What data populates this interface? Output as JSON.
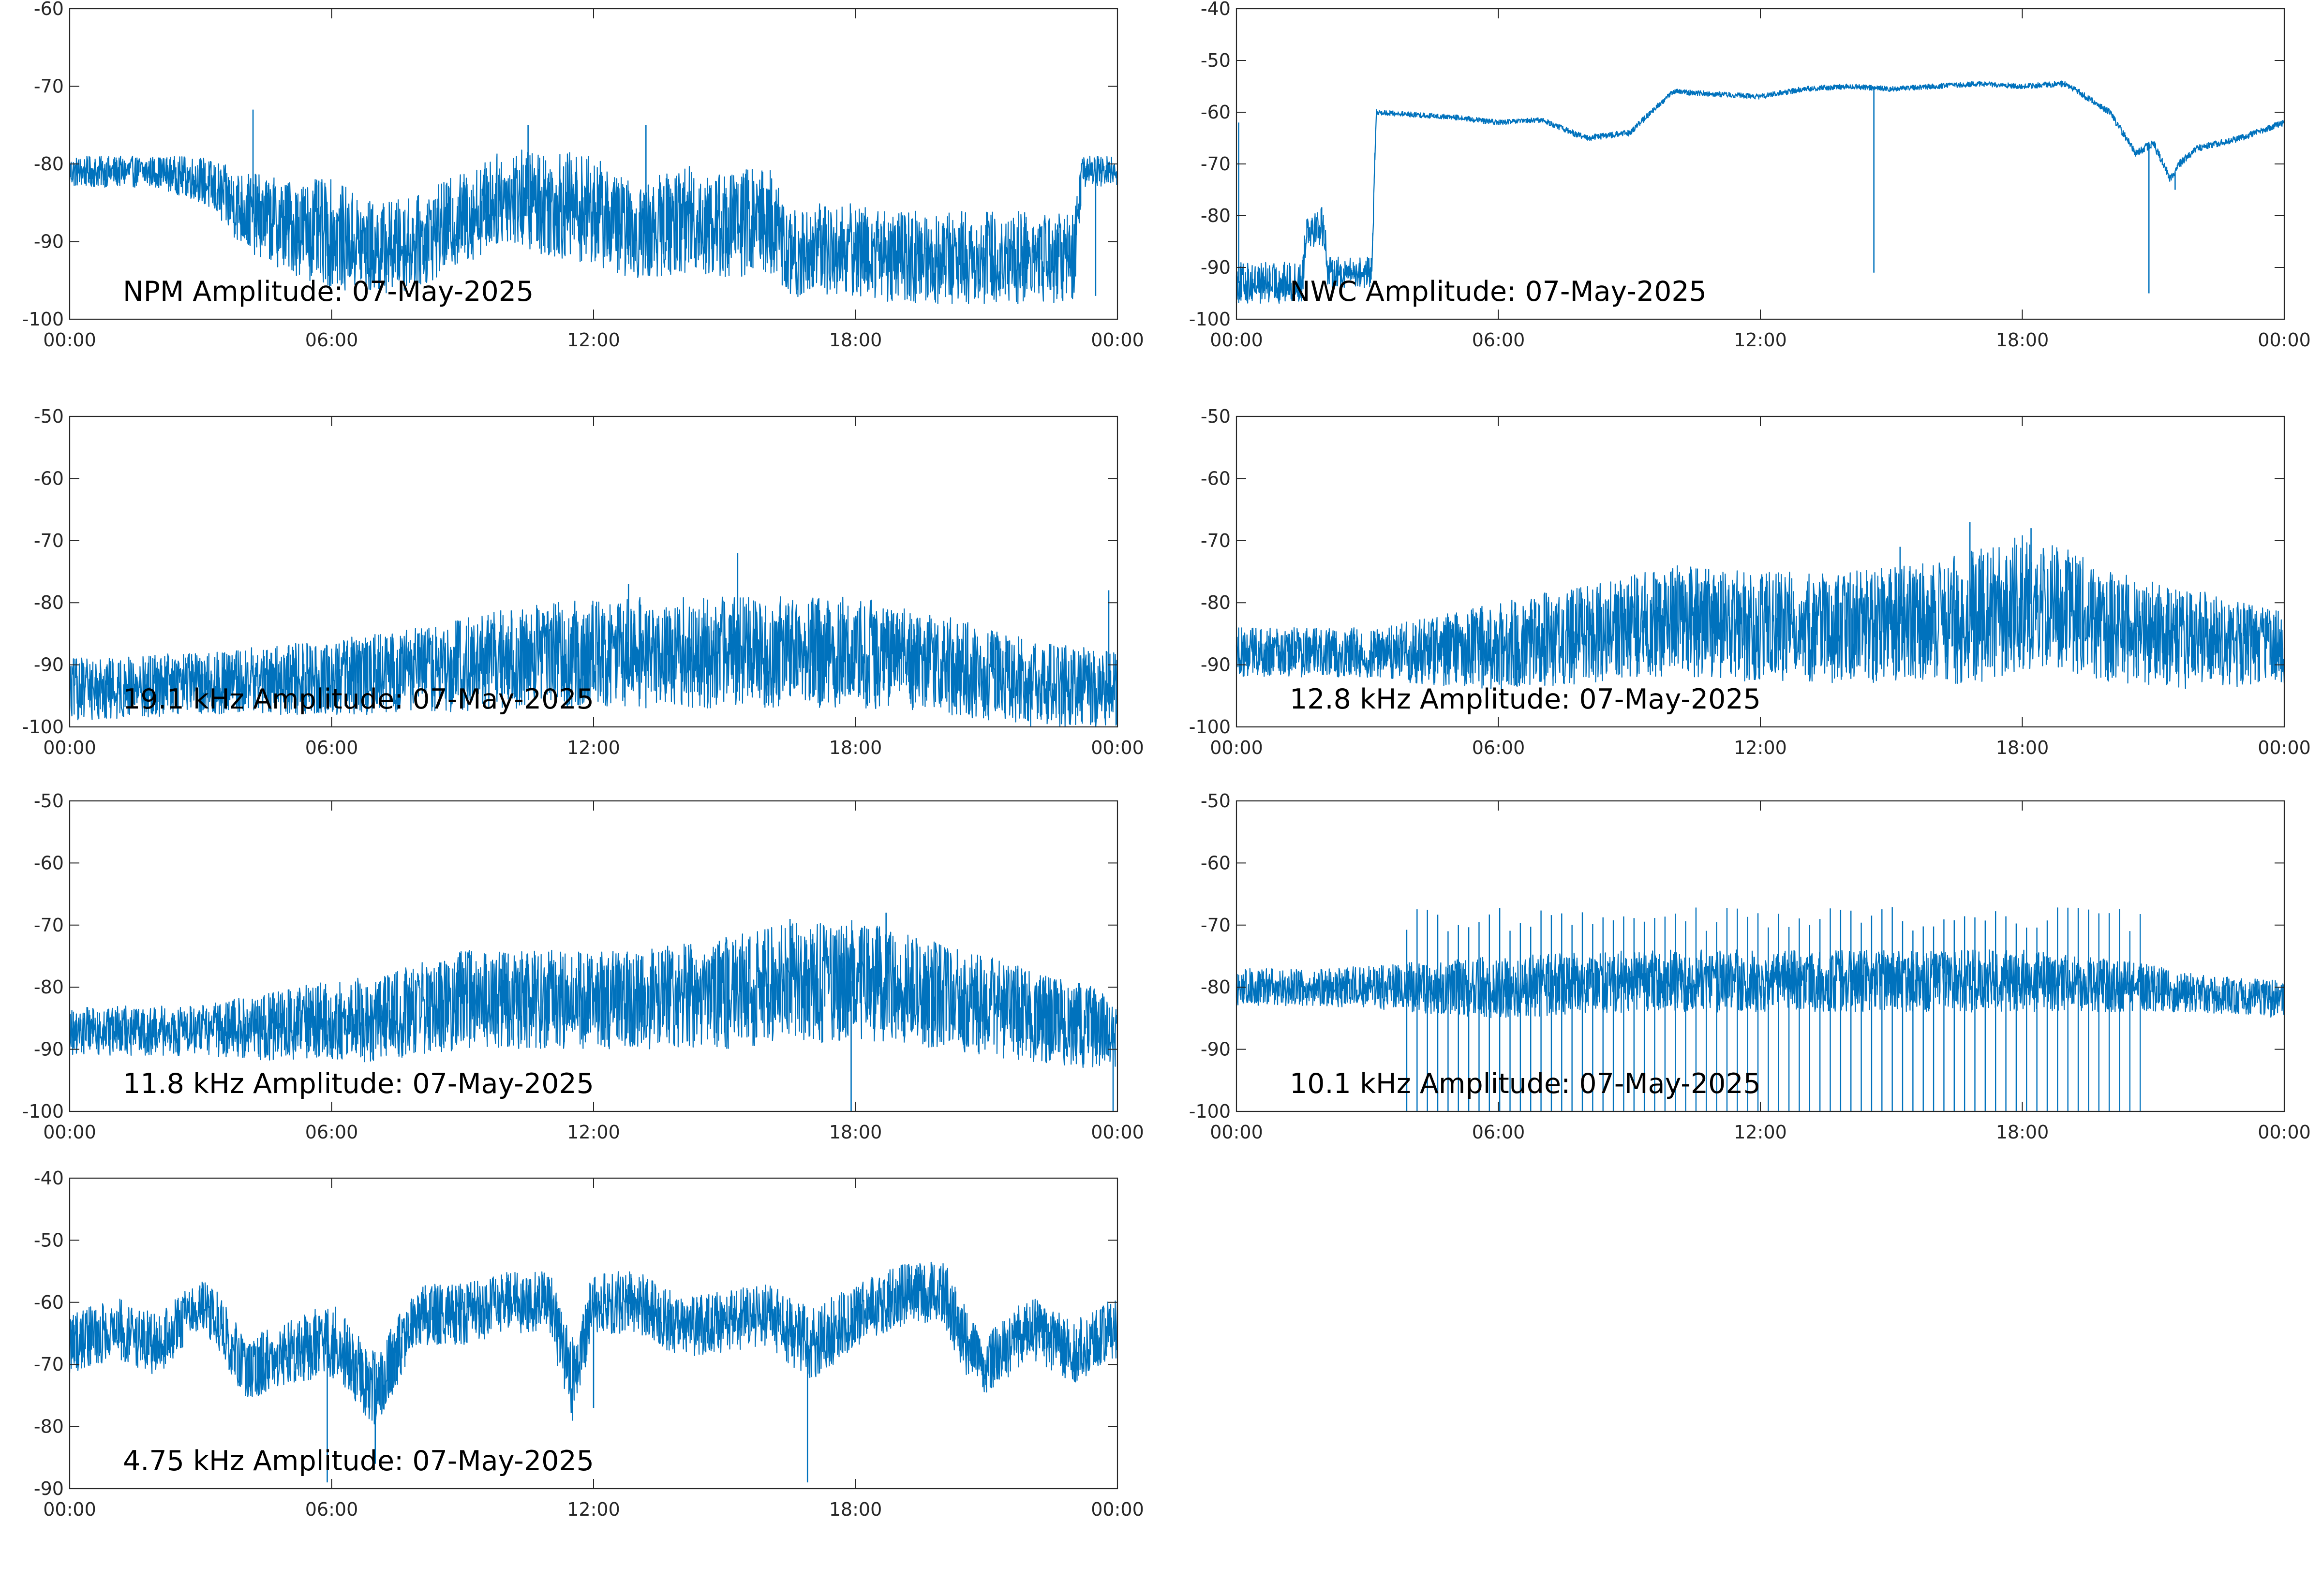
{
  "chart_data": [
    {
      "type": "line",
      "title": "NPM Amplitude: 07-May-2025",
      "x_ticks": [
        "00:00",
        "06:00",
        "12:00",
        "18:00",
        "00:00"
      ],
      "x_range_hours": [
        0,
        24
      ],
      "ylim": [
        -100,
        -60
      ],
      "y_ticks": [
        -60,
        -70,
        -80,
        -90,
        -100
      ],
      "series": [
        {
          "color": "#0072BD",
          "envelope": {
            "x_hours": [
              0,
              2,
              3,
              4,
              5,
              6,
              7,
              8,
              9,
              10,
              11,
              12,
              13,
              14,
              15,
              16,
              16.5,
              17,
              18,
              19,
              20,
              21,
              22,
              23,
              23.2,
              24
            ],
            "center": [
              -81,
              -81,
              -82,
              -86,
              -88,
              -89,
              -91,
              -90,
              -87,
              -84,
              -85,
              -86,
              -89,
              -87,
              -88,
              -87,
              -92,
              -91,
              -91,
              -92,
              -92,
              -92,
              -92,
              -92,
              -81,
              -81
            ],
            "spread": [
              2,
              2,
              3,
              5,
              6,
              7,
              6,
              6,
              6,
              6,
              7,
              7,
              6,
              7,
              7,
              7,
              6,
              6,
              6,
              6,
              6,
              6,
              6,
              6,
              2,
              2
            ]
          },
          "spikes": [
            [
              4.2,
              -73
            ],
            [
              4.3,
              -83
            ],
            [
              10.5,
              -75
            ],
            [
              13.2,
              -75
            ],
            [
              23.5,
              -97
            ]
          ]
        }
      ]
    },
    {
      "type": "line",
      "title": "NWC Amplitude: 07-May-2025",
      "x_ticks": [
        "00:00",
        "06:00",
        "12:00",
        "18:00",
        "00:00"
      ],
      "x_range_hours": [
        0,
        24
      ],
      "ylim": [
        -100,
        -40
      ],
      "y_ticks": [
        -40,
        -50,
        -60,
        -70,
        -80,
        -90,
        -100
      ],
      "series": [
        {
          "color": "#0072BD",
          "envelope": {
            "x_hours": [
              0,
              1.5,
              1.6,
              2.0,
              2.1,
              3.1,
              3.2,
              5,
              6,
              7,
              8,
              9,
              10,
              11,
              12,
              13,
              14,
              15,
              16,
              17,
              18,
              19,
              20,
              20.6,
              21.0,
              21.4,
              21.6,
              22,
              23,
              24
            ],
            "center": [
              -93,
              -93,
              -82,
              -82,
              -91,
              -91,
              -60,
              -61,
              -62,
              -61.5,
              -65,
              -64,
              -56,
              -56.5,
              -57,
              -55.5,
              -55,
              -55.5,
              -55,
              -54.5,
              -55,
              -54.5,
              -60,
              -68,
              -66,
              -73,
              -70,
              -67,
              -65,
              -62
            ],
            "spread": [
              4,
              4,
              4,
              4,
              3,
              3,
              0.5,
              0.5,
              0.5,
              0.5,
              0.6,
              0.6,
              0.5,
              0.5,
              0.5,
              0.5,
              0.5,
              0.5,
              0.5,
              0.5,
              0.5,
              0.6,
              0.6,
              0.8,
              0.8,
              0.8,
              0.8,
              0.6,
              0.6,
              0.6
            ]
          },
          "spikes": [
            [
              0.05,
              -62
            ],
            [
              14.6,
              -91
            ],
            [
              20.9,
              -95
            ],
            [
              21.5,
              -75
            ]
          ]
        }
      ]
    },
    {
      "type": "line",
      "title": "19.1 kHz Amplitude: 07-May-2025",
      "x_ticks": [
        "00:00",
        "06:00",
        "12:00",
        "18:00",
        "00:00"
      ],
      "x_range_hours": [
        0,
        24
      ],
      "ylim": [
        -100,
        -50
      ],
      "y_ticks": [
        -50,
        -60,
        -70,
        -80,
        -90,
        -100
      ],
      "series": [
        {
          "color": "#0072BD",
          "envelope": {
            "x_hours": [
              0,
              3,
              6,
              8,
              10,
              12,
              14,
              16,
              18,
              20,
              22,
              24
            ],
            "center": [
              -94,
              -93,
              -92,
              -91,
              -89,
              -88,
              -88,
              -88,
              -88,
              -90,
              -93,
              -94
            ],
            "spread": [
              5,
              5,
              6,
              7,
              8,
              9,
              9,
              9,
              9,
              8,
              7,
              6
            ]
          },
          "spikes": [
            [
              15.3,
              -72
            ],
            [
              12.8,
              -77
            ],
            [
              19.7,
              -82
            ],
            [
              23.8,
              -78
            ]
          ]
        }
      ]
    },
    {
      "type": "line",
      "title": "12.8 kHz Amplitude: 07-May-2025",
      "x_ticks": [
        "00:00",
        "06:00",
        "12:00",
        "18:00",
        "00:00"
      ],
      "x_range_hours": [
        0,
        24
      ],
      "ylim": [
        -100,
        -50
      ],
      "y_ticks": [
        -50,
        -60,
        -70,
        -80,
        -90,
        -100
      ],
      "series": [
        {
          "color": "#0072BD",
          "envelope": {
            "x_hours": [
              0,
              3,
              4,
              6,
              8,
              10,
              12,
              14,
              16,
              17,
              18,
              19,
              20,
              22,
              24
            ],
            "center": [
              -88,
              -88,
              -88,
              -87,
              -85,
              -83,
              -84,
              -84,
              -83,
              -82,
              -80,
              -81,
              -84,
              -86,
              -87
            ],
            "spread": [
              4,
              4,
              5,
              7,
              8,
              9,
              9,
              9,
              10,
              11,
              11,
              10,
              9,
              8,
              6
            ]
          },
          "spikes": [
            [
              16.8,
              -67
            ],
            [
              18.2,
              -68
            ],
            [
              15.2,
              -71
            ]
          ]
        }
      ]
    },
    {
      "type": "line",
      "title": "11.8 kHz Amplitude: 07-May-2025",
      "x_ticks": [
        "00:00",
        "06:00",
        "12:00",
        "18:00",
        "00:00"
      ],
      "x_range_hours": [
        0,
        24
      ],
      "ylim": [
        -100,
        -50
      ],
      "y_ticks": [
        -50,
        -60,
        -70,
        -80,
        -90,
        -100
      ],
      "series": [
        {
          "color": "#0072BD",
          "envelope": {
            "x_hours": [
              0,
              3,
              5,
              7,
              9,
              11,
              13,
              15,
              17,
              18,
              19,
              21,
              23,
              24
            ],
            "center": [
              -87,
              -87,
              -86,
              -85,
              -82,
              -82,
              -82,
              -81,
              -79,
              -79,
              -80,
              -83,
              -86,
              -87
            ],
            "spread": [
              4,
              4,
              6,
              7,
              8,
              8,
              8,
              9,
              10,
              10,
              9,
              8,
              7,
              6
            ]
          },
          "spikes": [
            [
              18.7,
              -68
            ],
            [
              16.5,
              -69
            ],
            [
              17.9,
              -100
            ],
            [
              23.9,
              -100
            ]
          ]
        }
      ]
    },
    {
      "type": "line",
      "title": "10.1 kHz Amplitude: 07-May-2025",
      "x_ticks": [
        "00:00",
        "06:00",
        "12:00",
        "18:00",
        "00:00"
      ],
      "x_range_hours": [
        0,
        24
      ],
      "ylim": [
        -100,
        -50
      ],
      "y_ticks": [
        -50,
        -60,
        -70,
        -80,
        -90,
        -100
      ],
      "series": [
        {
          "color": "#0072BD",
          "envelope": {
            "x_hours": [
              0,
              2,
              3.9,
              6,
              9,
              12,
              15,
              18,
              20.6,
              22,
              24
            ],
            "center": [
              -80,
              -80,
              -80,
              -80,
              -79,
              -79,
              -79,
              -79,
              -80,
              -81,
              -82
            ],
            "spread": [
              3,
              3,
              4,
              5,
              5,
              5,
              5,
              5,
              4,
              3,
              3
            ]
          },
          "periodic_spikes": {
            "start_hours": 3.9,
            "end_hours": 20.7,
            "count": 72,
            "up_to": -69,
            "down_to": -100
          }
        }
      ]
    },
    {
      "type": "line",
      "title": "4.75 kHz Amplitude: 07-May-2025",
      "x_ticks": [
        "00:00",
        "06:00",
        "12:00",
        "18:00",
        "00:00"
      ],
      "x_range_hours": [
        0,
        24
      ],
      "ylim": [
        -90,
        -40
      ],
      "y_ticks": [
        -40,
        -50,
        -60,
        -70,
        -80,
        -90
      ],
      "series": [
        {
          "color": "#0072BD",
          "envelope": {
            "x_hours": [
              0,
              1,
              2,
              3,
              3.5,
              4,
              5,
              6,
              7,
              8,
              9,
              10,
              11,
              11.5,
              12,
              13,
              14,
              15,
              16,
              17,
              18,
              19,
              20,
              20.5,
              21,
              22,
              23,
              24
            ],
            "center": [
              -67,
              -64,
              -67,
              -60,
              -64,
              -71,
              -68,
              -66,
              -74,
              -62,
              -62,
              -60,
              -60,
              -73,
              -60,
              -60,
              -64,
              -63,
              -62,
              -67,
              -62,
              -59,
              -58,
              -66,
              -70,
              -64,
              -68,
              -64
            ],
            "spread": [
              5,
              5,
              5,
              4,
              5,
              5,
              5,
              6,
              6,
              5,
              5,
              5,
              5,
              7,
              5,
              5,
              5,
              5,
              5,
              6,
              5,
              5,
              5,
              6,
              5,
              5,
              5,
              5
            ]
          },
          "spikes": [
            [
              5.9,
              -89
            ],
            [
              16.9,
              -89
            ],
            [
              7.0,
              -86
            ],
            [
              12.0,
              -77
            ]
          ]
        }
      ]
    }
  ]
}
